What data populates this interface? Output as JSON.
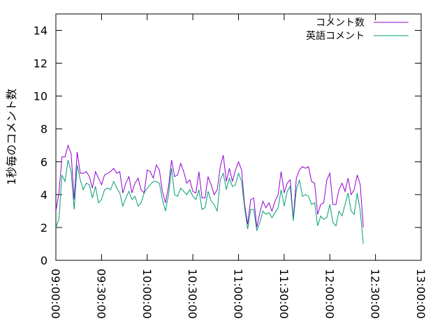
{
  "chart_data": {
    "type": "line",
    "title": "",
    "xlabel": "",
    "ylabel": "1秒毎のコメント数",
    "ylim": [
      0,
      15
    ],
    "y_ticks": [
      0,
      2,
      4,
      6,
      8,
      10,
      12,
      14
    ],
    "xlim": [
      "09:00:00",
      "13:00:00"
    ],
    "x_ticks": [
      "09:00:00",
      "09:30:00",
      "10:00:00",
      "10:30:00",
      "11:00:00",
      "11:30:00",
      "12:00:00",
      "12:30:00",
      "13:00:00"
    ],
    "grid": false,
    "legend_position": "top-right",
    "x_interval_minutes": 2,
    "x_start": "09:00:00",
    "series": [
      {
        "name": "コメント数",
        "color": "#9400d3",
        "values": [
          3.0,
          4.1,
          6.3,
          6.3,
          7.0,
          6.5,
          3.7,
          6.6,
          5.3,
          5.3,
          5.4,
          5.1,
          4.4,
          5.4,
          5.0,
          4.6,
          5.2,
          5.3,
          5.4,
          5.6,
          5.3,
          5.4,
          4.1,
          4.7,
          5.1,
          4.1,
          4.7,
          5.0,
          4.3,
          4.1,
          5.5,
          5.4,
          5.0,
          5.8,
          5.5,
          4.2,
          3.5,
          4.5,
          6.1,
          5.1,
          5.2,
          5.9,
          5.4,
          4.7,
          4.9,
          4.2,
          4.1,
          5.4,
          3.8,
          3.8,
          5.1,
          4.6,
          4.0,
          4.3,
          5.7,
          6.4,
          4.8,
          5.6,
          4.8,
          5.5,
          6.0,
          5.5,
          3.4,
          2.2,
          3.7,
          3.8,
          2.0,
          2.9,
          3.6,
          3.2,
          3.5,
          3.0,
          3.6,
          4.0,
          5.4,
          4.1,
          4.7,
          4.9,
          2.5,
          5.0,
          5.5,
          5.7,
          5.6,
          5.7,
          4.8,
          4.7,
          2.8,
          3.4,
          3.5,
          4.9,
          5.3,
          3.4,
          3.4,
          4.3,
          4.7,
          4.2,
          5.0,
          4.0,
          4.3,
          5.2,
          4.6,
          2.0
        ]
      },
      {
        "name": "英語コメント",
        "color": "#009e73",
        "values": [
          2.0,
          2.5,
          5.2,
          4.8,
          6.1,
          5.4,
          3.1,
          5.8,
          4.9,
          4.3,
          4.7,
          4.6,
          3.8,
          4.5,
          3.5,
          3.7,
          4.3,
          4.4,
          4.3,
          4.8,
          4.4,
          4.1,
          3.3,
          3.8,
          4.2,
          3.7,
          3.9,
          3.3,
          3.5,
          4.1,
          4.4,
          4.6,
          4.8,
          4.8,
          4.7,
          3.7,
          3.0,
          4.0,
          5.6,
          4.0,
          3.9,
          4.4,
          4.2,
          4.0,
          4.3,
          3.9,
          3.7,
          4.3,
          3.1,
          3.2,
          4.2,
          3.6,
          3.4,
          3.0,
          4.9,
          5.3,
          4.3,
          5.0,
          4.5,
          4.6,
          5.3,
          4.8,
          3.2,
          1.9,
          3.1,
          3.1,
          1.8,
          2.3,
          3.0,
          2.8,
          2.9,
          2.6,
          2.9,
          3.2,
          4.3,
          3.3,
          4.2,
          4.5,
          2.4,
          4.3,
          4.9,
          3.9,
          4.0,
          3.9,
          3.4,
          3.5,
          2.1,
          2.7,
          2.5,
          2.6,
          3.4,
          2.3,
          2.1,
          3.0,
          2.7,
          3.4,
          4.1,
          3.0,
          2.8,
          4.1,
          3.0,
          1.0
        ]
      }
    ]
  }
}
